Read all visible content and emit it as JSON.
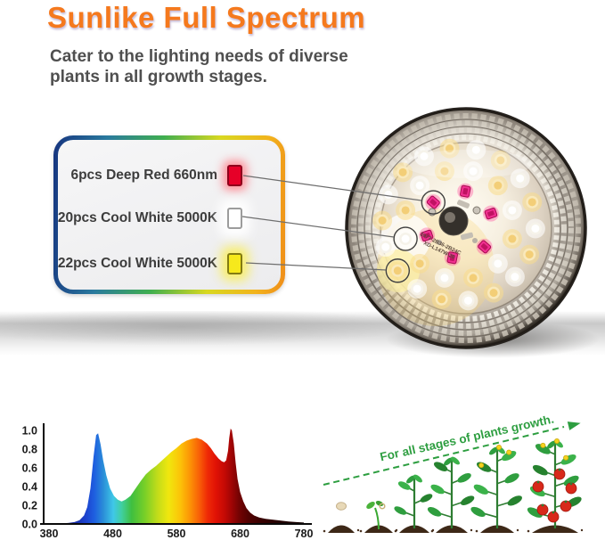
{
  "header": {
    "title": "Sunlike Full Spectrum",
    "subtitle_line1": "Cater to the lighting needs of diverse",
    "subtitle_line2": "plants in all growth stages."
  },
  "legend": {
    "items": [
      {
        "label": "6pcs Deep Red 660nm",
        "led": "deep-red-660nm",
        "color": "#e60028",
        "glow": "#ff8290"
      },
      {
        "label": "20pcs Cool White 5000K",
        "led": "cool-white-5000k",
        "color": "#ffffff",
        "glow": "#ffffff"
      },
      {
        "label": "22pcs Cool White 5000K",
        "led": "warm-yellow-5000k",
        "color": "#f6e91c",
        "glow": "#faee5a"
      }
    ]
  },
  "lamp": {
    "pcb_line1": "3977-2B36-2B24C",
    "pcb_line2": "XD-L147W-20"
  },
  "growth": {
    "caption": "For all stages of plants growth.",
    "caption_color": "#2d9e40",
    "stages": [
      "seed",
      "sprout",
      "seedling",
      "young-plant",
      "flowering-plant",
      "fruiting-plant"
    ]
  },
  "colors": {
    "title_orange": "#f5791d",
    "subtitle_gray": "#4f4f4f",
    "legend_border_gradient": [
      "#16347f",
      "#3fae4f",
      "#d8d820",
      "#ef8d1a"
    ]
  },
  "chart_data": {
    "type": "area",
    "title": "",
    "xlabel": "",
    "ylabel": "",
    "xlim": [
      380,
      780
    ],
    "ylim": [
      0,
      1.05
    ],
    "x_ticks": [
      380,
      480,
      580,
      680,
      780
    ],
    "y_ticks": [
      "0.0",
      "0.2",
      "0.4",
      "0.6",
      "0.8",
      "1.0"
    ],
    "grid": false,
    "legend_position": "none",
    "series": [
      {
        "name": "relative-spectral-intensity",
        "points": [
          [
            380,
            0
          ],
          [
            395,
            0.005
          ],
          [
            410,
            0.01
          ],
          [
            420,
            0.02
          ],
          [
            428,
            0.04
          ],
          [
            435,
            0.09
          ],
          [
            440,
            0.18
          ],
          [
            445,
            0.38
          ],
          [
            450,
            0.72
          ],
          [
            454,
            0.95
          ],
          [
            457,
            0.97
          ],
          [
            461,
            0.85
          ],
          [
            465,
            0.68
          ],
          [
            470,
            0.52
          ],
          [
            476,
            0.38
          ],
          [
            482,
            0.3
          ],
          [
            488,
            0.26
          ],
          [
            494,
            0.24
          ],
          [
            500,
            0.26
          ],
          [
            508,
            0.3
          ],
          [
            516,
            0.38
          ],
          [
            524,
            0.46
          ],
          [
            532,
            0.53
          ],
          [
            540,
            0.58
          ],
          [
            548,
            0.62
          ],
          [
            556,
            0.67
          ],
          [
            564,
            0.72
          ],
          [
            572,
            0.77
          ],
          [
            580,
            0.81
          ],
          [
            588,
            0.86
          ],
          [
            596,
            0.89
          ],
          [
            604,
            0.91
          ],
          [
            612,
            0.92
          ],
          [
            620,
            0.9
          ],
          [
            628,
            0.86
          ],
          [
            634,
            0.81
          ],
          [
            640,
            0.75
          ],
          [
            646,
            0.7
          ],
          [
            651,
            0.67
          ],
          [
            655,
            0.66
          ],
          [
            658,
            0.68
          ],
          [
            661,
            0.78
          ],
          [
            663,
            0.92
          ],
          [
            665,
            1.02
          ],
          [
            667,
            1.0
          ],
          [
            670,
            0.86
          ],
          [
            673,
            0.65
          ],
          [
            676,
            0.48
          ],
          [
            680,
            0.34
          ],
          [
            685,
            0.24
          ],
          [
            690,
            0.17
          ],
          [
            696,
            0.12
          ],
          [
            702,
            0.09
          ],
          [
            710,
            0.07
          ],
          [
            720,
            0.055
          ],
          [
            732,
            0.045
          ],
          [
            744,
            0.035
          ],
          [
            756,
            0.027
          ],
          [
            768,
            0.02
          ],
          [
            780,
            0.015
          ]
        ]
      }
    ],
    "gradient_stops": [
      [
        380,
        "#23238c"
      ],
      [
        425,
        "#1a2aa0"
      ],
      [
        445,
        "#1c43cf"
      ],
      [
        458,
        "#1e5fe0"
      ],
      [
        472,
        "#2b8fd8"
      ],
      [
        487,
        "#3fc8e8"
      ],
      [
        500,
        "#40cf9f"
      ],
      [
        515,
        "#3fbf3f"
      ],
      [
        535,
        "#77cf28"
      ],
      [
        555,
        "#c2dc1a"
      ],
      [
        572,
        "#f0e70e"
      ],
      [
        590,
        "#fcc308"
      ],
      [
        605,
        "#fc9305"
      ],
      [
        620,
        "#f85c07"
      ],
      [
        632,
        "#ef2a06"
      ],
      [
        645,
        "#e01205"
      ],
      [
        658,
        "#c50a05"
      ],
      [
        668,
        "#a30505"
      ],
      [
        680,
        "#750303"
      ],
      [
        695,
        "#520202"
      ],
      [
        715,
        "#380101"
      ],
      [
        745,
        "#220101"
      ],
      [
        780,
        "#120000"
      ]
    ]
  }
}
